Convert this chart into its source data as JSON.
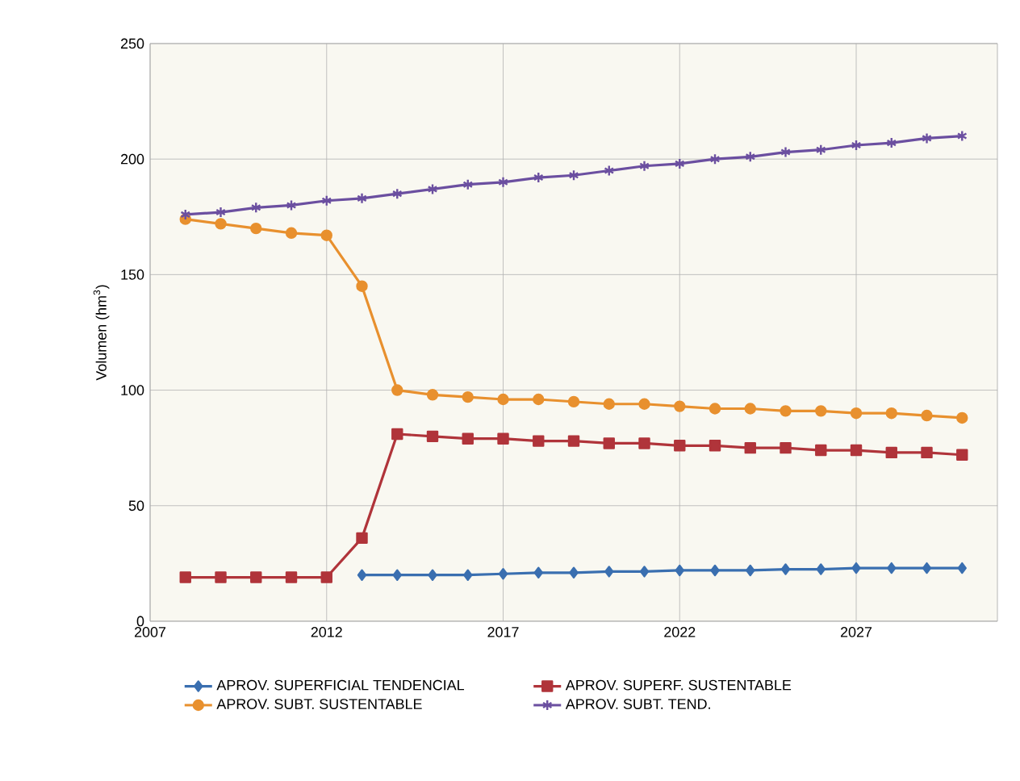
{
  "chart_data": {
    "type": "line",
    "ylabel": "Volumen (hm$^{3}$)",
    "x": [
      2008,
      2009,
      2010,
      2011,
      2012,
      2013,
      2014,
      2015,
      2016,
      2017,
      2018,
      2019,
      2020,
      2021,
      2022,
      2023,
      2024,
      2025,
      2026,
      2027,
      2028,
      2029,
      2030
    ],
    "xlim": [
      2007,
      2031
    ],
    "xticks": [
      2007,
      2012,
      2017,
      2022,
      2027
    ],
    "ylim": [
      0,
      250
    ],
    "yticks": [
      0,
      50,
      100,
      150,
      200,
      250
    ],
    "grid": true,
    "legend": "bottom",
    "line_style": "solid",
    "series": [
      {
        "name": "APROV. SUPERFICIAL TENDENCIAL",
        "color": "#3a6fb0",
        "marker": "diamond",
        "values": [
          null,
          null,
          null,
          null,
          null,
          20,
          20,
          20,
          20,
          20.5,
          21,
          21,
          21.5,
          21.5,
          22,
          22,
          22,
          22.5,
          22.5,
          23,
          23,
          23,
          23
        ]
      },
      {
        "name": "APROV. SUPERF. SUSTENTABLE",
        "color": "#b0343a",
        "marker": "square",
        "values": [
          19,
          19,
          19,
          19,
          19,
          36,
          81,
          80,
          79,
          79,
          78,
          78,
          77,
          77,
          76,
          76,
          75,
          75,
          74,
          74,
          73,
          73,
          72
        ]
      },
      {
        "name": "APROV. SUBT. SUSTENTABLE",
        "color": "#e8902e",
        "marker": "circle",
        "values": [
          174,
          172,
          170,
          168,
          167,
          145,
          100,
          98,
          97,
          96,
          96,
          95,
          94,
          94,
          93,
          92,
          92,
          91,
          91,
          90,
          90,
          89,
          88
        ]
      },
      {
        "name": "APROV. SUBT. TEND.",
        "color": "#6b4fa0",
        "marker": "cross",
        "values": [
          176,
          177,
          179,
          180,
          182,
          183,
          185,
          187,
          189,
          190,
          192,
          193,
          195,
          197,
          198,
          200,
          201,
          203,
          204,
          206,
          207,
          209,
          210
        ]
      }
    ]
  }
}
